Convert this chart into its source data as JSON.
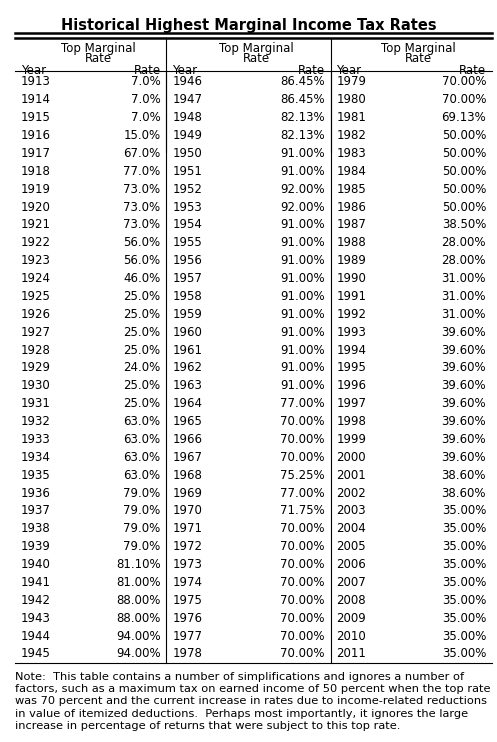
{
  "title": "Historical Highest Marginal Income Tax Rates",
  "col1": {
    "years": [
      "1913",
      "1914",
      "1915",
      "1916",
      "1917",
      "1918",
      "1919",
      "1920",
      "1921",
      "1922",
      "1923",
      "1924",
      "1925",
      "1926",
      "1927",
      "1928",
      "1929",
      "1930",
      "1931",
      "1932",
      "1933",
      "1934",
      "1935",
      "1936",
      "1937",
      "1938",
      "1939",
      "1940",
      "1941",
      "1942",
      "1943",
      "1944",
      "1945"
    ],
    "rates": [
      "7.0%",
      "7.0%",
      "7.0%",
      "15.0%",
      "67.0%",
      "77.0%",
      "73.0%",
      "73.0%",
      "73.0%",
      "56.0%",
      "56.0%",
      "46.0%",
      "25.0%",
      "25.0%",
      "25.0%",
      "25.0%",
      "24.0%",
      "25.0%",
      "25.0%",
      "63.0%",
      "63.0%",
      "63.0%",
      "63.0%",
      "79.0%",
      "79.0%",
      "79.0%",
      "79.0%",
      "81.10%",
      "81.00%",
      "88.00%",
      "88.00%",
      "94.00%",
      "94.00%"
    ]
  },
  "col2": {
    "years": [
      "1946",
      "1947",
      "1948",
      "1949",
      "1950",
      "1951",
      "1952",
      "1953",
      "1954",
      "1955",
      "1956",
      "1957",
      "1958",
      "1959",
      "1960",
      "1961",
      "1962",
      "1963",
      "1964",
      "1965",
      "1966",
      "1967",
      "1968",
      "1969",
      "1970",
      "1971",
      "1972",
      "1973",
      "1974",
      "1975",
      "1976",
      "1977",
      "1978"
    ],
    "rates": [
      "86.45%",
      "86.45%",
      "82.13%",
      "82.13%",
      "91.00%",
      "91.00%",
      "92.00%",
      "92.00%",
      "91.00%",
      "91.00%",
      "91.00%",
      "91.00%",
      "91.00%",
      "91.00%",
      "91.00%",
      "91.00%",
      "91.00%",
      "91.00%",
      "77.00%",
      "70.00%",
      "70.00%",
      "70.00%",
      "75.25%",
      "77.00%",
      "71.75%",
      "70.00%",
      "70.00%",
      "70.00%",
      "70.00%",
      "70.00%",
      "70.00%",
      "70.00%",
      "70.00%"
    ]
  },
  "col3": {
    "years": [
      "1979",
      "1980",
      "1981",
      "1982",
      "1983",
      "1984",
      "1985",
      "1986",
      "1987",
      "1988",
      "1989",
      "1990",
      "1991",
      "1992",
      "1993",
      "1994",
      "1995",
      "1996",
      "1997",
      "1998",
      "1999",
      "2000",
      "2001",
      "2002",
      "2003",
      "2004",
      "2005",
      "2006",
      "2007",
      "2008",
      "2009",
      "2010",
      "2011"
    ],
    "rates": [
      "70.00%",
      "70.00%",
      "69.13%",
      "50.00%",
      "50.00%",
      "50.00%",
      "50.00%",
      "50.00%",
      "38.50%",
      "28.00%",
      "28.00%",
      "31.00%",
      "31.00%",
      "31.00%",
      "39.60%",
      "39.60%",
      "39.60%",
      "39.60%",
      "39.60%",
      "39.60%",
      "39.60%",
      "39.60%",
      "38.60%",
      "38.60%",
      "35.00%",
      "35.00%",
      "35.00%",
      "35.00%",
      "35.00%",
      "35.00%",
      "35.00%",
      "35.00%",
      "35.00%"
    ]
  },
  "note": "Note:  This table contains a number of simplifications and ignores a number of factors, such as a maximum tax on earned income of 50 percent when the top rate was 70 percent and the current increase in rates due to income-related reductions in value of itemized deductions.  Perhaps most importantly, it ignores the large increase in percentage of returns that were subject to this top rate.",
  "bg_color": "#ffffff",
  "text_color": "#000000",
  "title_fontsize": 10.5,
  "header_fontsize": 8.5,
  "data_fontsize": 8.5,
  "note_fontsize": 8.2,
  "fig_width": 4.97,
  "fig_height": 7.42,
  "dpi": 100
}
